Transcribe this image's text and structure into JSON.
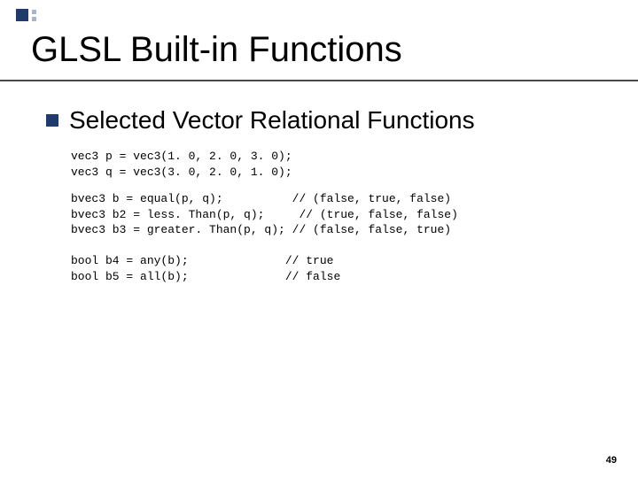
{
  "slide": {
    "title": "GLSL Built-in Functions",
    "subtitle": "Selected Vector Relational Functions",
    "page_number": "49",
    "accent": {
      "big_square_color": "#1f3a6d",
      "small_square_color": "#a9b4cc",
      "rule_color": "#4a4a4a"
    },
    "typography": {
      "title_fontsize_pt": 30,
      "subtitle_fontsize_pt": 21,
      "code_fontsize_pt": 10,
      "code_font": "Courier New",
      "body_font": "Arial"
    },
    "code": {
      "block1_line1": "vec3 p = vec3(1. 0, 2. 0, 3. 0);",
      "block1_line2": "vec3 q = vec3(3. 0, 2. 0, 1. 0);",
      "block2_line1": "bvec3 b = equal(p, q);          // (false, true, false)",
      "block2_line2": "bvec3 b2 = less. Than(p, q);     // (true, false, false)",
      "block2_line3": "bvec3 b3 = greater. Than(p, q); // (false, false, true)",
      "block3_line1": "bool b4 = any(b);              // true",
      "block3_line2": "bool b5 = all(b);              // false"
    }
  }
}
